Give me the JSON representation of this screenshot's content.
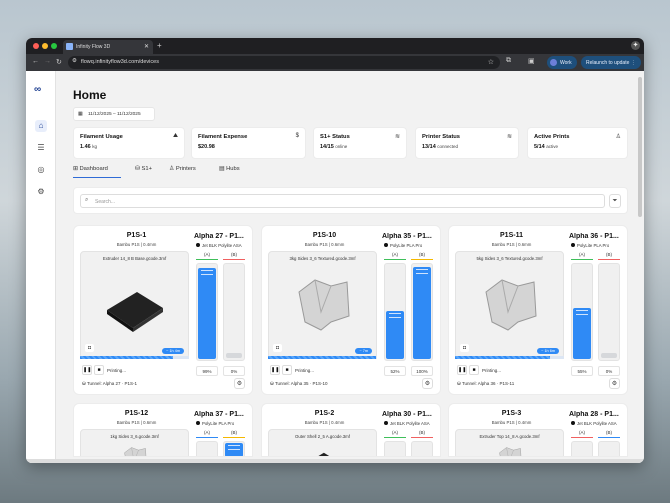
{
  "browser": {
    "tab_title": "Infinity Flow 3D",
    "url": "flowq.infinityflow3d.com/devices",
    "profile": "Work",
    "profile_initial": "N",
    "relaunch": "Relaunch to update"
  },
  "sidebar": {
    "items": [
      {
        "icon": "home-icon",
        "active": true
      },
      {
        "icon": "list-icon"
      },
      {
        "icon": "compass-icon"
      },
      {
        "icon": "gear-icon"
      }
    ]
  },
  "page": {
    "title": "Home",
    "date_range": "11/12/2025 – 11/12/2025"
  },
  "stats": [
    {
      "title": "Filament Usage",
      "value": "1.46",
      "unit": "kg",
      "icon": "chart-icon"
    },
    {
      "title": "Filament Expense",
      "value": "$20.98",
      "unit": "",
      "icon": "dollar-icon"
    },
    {
      "title": "S1+ Status",
      "value": "14/15",
      "unit": "online",
      "icon": "wifi-icon"
    },
    {
      "title": "Printer Status",
      "value": "13/14",
      "unit": "connected",
      "icon": "wifi-icon"
    },
    {
      "title": "Active Prints",
      "value": "5/14",
      "unit": "active",
      "icon": "printer-icon"
    }
  ],
  "tabs": [
    {
      "label": "Dashboard",
      "active": true
    },
    {
      "label": "S1+"
    },
    {
      "label": "Printers"
    },
    {
      "label": "Hubs"
    }
  ],
  "search": {
    "placeholder": "Search..."
  },
  "printers": [
    {
      "name": "P1S-1",
      "model": "Bambu P1S | 0.4mm",
      "hub": "Alpha 27 - P1...",
      "material": "Jet BLK Polylite ASA",
      "file": "Extruder 14_8 B Base.gcode.3mf",
      "eta": "~ 1h 4m",
      "progress": 85,
      "status": "Printing...",
      "tunnel": "Tunnel: Alpha 27 · P1S-1",
      "slots": [
        {
          "label": "(A)",
          "color": "#3fbf5a",
          "level": 99,
          "pct": "99%"
        },
        {
          "label": "(B)",
          "color": "#f06060",
          "level": 0,
          "pct": "0%"
        }
      ],
      "shape": "dark"
    },
    {
      "name": "P1S-10",
      "model": "Bambu P1S | 0.6mm",
      "hub": "Alpha 35 - P1...",
      "material": "PolyLite PLA Pro",
      "file": "3kg Sides 3_6 Textured.gcode.3mf",
      "eta": "~ 7m",
      "progress": 99,
      "status": "Printing...",
      "tunnel": "Tunnel: Alpha 35 · P1S-10",
      "slots": [
        {
          "label": "(A)",
          "color": "#3fbf5a",
          "level": 52,
          "pct": "52%"
        },
        {
          "label": "(B)",
          "color": "#f5b800",
          "level": 100,
          "pct": "100%"
        }
      ],
      "shape": "light"
    },
    {
      "name": "P1S-11",
      "model": "Bambu P1S | 0.6mm",
      "hub": "Alpha 36 - P1...",
      "material": "PolyLite PLA Pro",
      "file": "5kg Sides 3_6 Textured.gcode.3mf",
      "eta": "~ 1h 6m",
      "progress": 87,
      "status": "Printing...",
      "tunnel": "Tunnel: Alpha 36 · P1S-11",
      "slots": [
        {
          "label": "(A)",
          "color": "#3fbf5a",
          "level": 55,
          "pct": "55%"
        },
        {
          "label": "(B)",
          "color": "#f06060",
          "level": 0,
          "pct": "0%"
        }
      ],
      "shape": "light"
    },
    {
      "name": "P1S-12",
      "model": "Bambu P1S | 0.6mm",
      "hub": "Alpha 37 - P1...",
      "material": "PolyLite PLA Pro",
      "file": "1kg Sides 3_6.gcode.3mf",
      "slots": [
        {
          "label": "(A)",
          "color": "#2f8af5",
          "level": 0
        },
        {
          "label": "(B)",
          "color": "#f5b800",
          "level": 100
        }
      ],
      "shape": "light"
    },
    {
      "name": "P1S-2",
      "model": "Bambu P1S | 0.4mm",
      "hub": "Alpha 30 - P1...",
      "material": "Jet BLK Polylite ASA",
      "file": "Outer Shell 2_5 A.gcode.3mf",
      "slots": [
        {
          "label": "(A)",
          "color": "#3fbf5a",
          "level": 0
        },
        {
          "label": "(B)",
          "color": "#f06060",
          "level": 0
        }
      ],
      "shape": "dark"
    },
    {
      "name": "P1S-3",
      "model": "Bambu P1S | 0.4mm",
      "hub": "Alpha 28 - P1...",
      "material": "Jet BLK Polylite ASA",
      "file": "Extruder Top 14_8 A.gcode.3mf",
      "slots": [
        {
          "label": "(A)",
          "color": "#f06060",
          "level": 0
        },
        {
          "label": "(B)",
          "color": "#2f8af5",
          "level": 0
        }
      ],
      "shape": "light"
    }
  ],
  "colors": {
    "accent": "#2f8af5",
    "brand": "#1a3c8f"
  }
}
